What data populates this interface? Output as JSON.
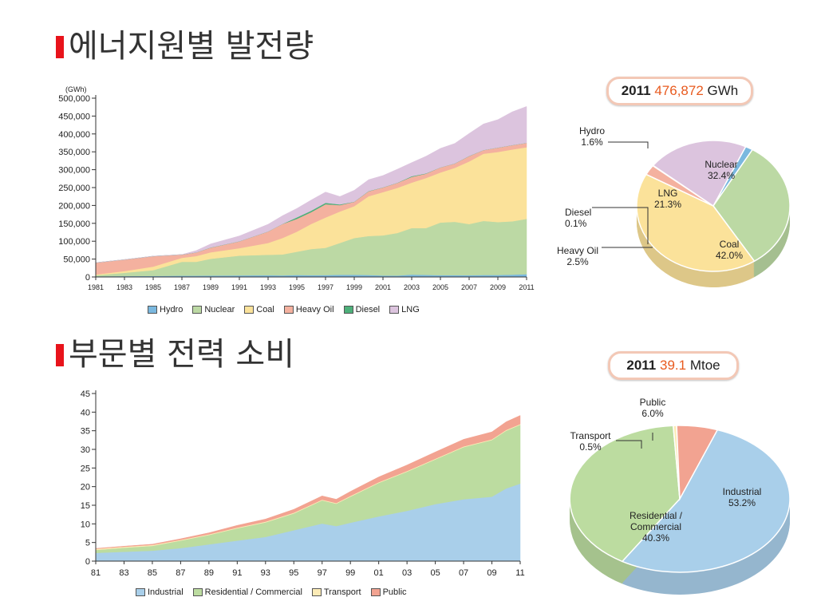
{
  "section1": {
    "title": "에너지원별 발전량"
  },
  "section2": {
    "title": "부문별 전력 소비"
  },
  "colors": {
    "accent": "#e8131b",
    "hydro": "#7ab8df",
    "nuclear": "#bcd9a4",
    "coal": "#fbe29a",
    "heavy_oil": "#f4b19f",
    "diesel": "#4db07a",
    "lng": "#dcc4de",
    "industrial": "#a9cfea",
    "residential": "#bcdca0",
    "transport": "#fcebb6",
    "public": "#f2a391"
  },
  "chart_data": [
    {
      "type": "area",
      "stacked": true,
      "ylabel": "(GWh)",
      "ylim": [
        0,
        500000
      ],
      "yticks": [
        0,
        50000,
        100000,
        150000,
        200000,
        250000,
        300000,
        350000,
        400000,
        450000,
        500000
      ],
      "ytick_labels": [
        "0",
        "50,000",
        "100,000",
        "150,000",
        "200,000",
        "250,000",
        "300,000",
        "350,000",
        "400,000",
        "450,000",
        "500,000"
      ],
      "x": [
        1981,
        1983,
        1985,
        1987,
        1988,
        1989,
        1991,
        1993,
        1994,
        1995,
        1996,
        1997,
        1998,
        1999,
        2000,
        2001,
        2002,
        2003,
        2004,
        2005,
        2006,
        2007,
        2008,
        2009,
        2010,
        2011
      ],
      "xtick_labels": [
        "1981",
        "1983",
        "1985",
        "1987",
        "1989",
        "1991",
        "1993",
        "1995",
        "1997",
        "1999",
        "2001",
        "2003",
        "2005",
        "2007",
        "2009",
        "2011"
      ],
      "series": [
        {
          "name": "Hydro",
          "values": [
            2000,
            2500,
            3000,
            3500,
            3500,
            4000,
            4500,
            5000,
            4500,
            5500,
            5200,
            5400,
            6000,
            6000,
            5600,
            4200,
            4000,
            6800,
            5800,
            5200,
            5200,
            5000,
            5600,
            5600,
            6500,
            7800
          ]
        },
        {
          "name": "Nuclear",
          "values": [
            3000,
            9000,
            16000,
            39000,
            39000,
            47000,
            55000,
            57000,
            58500,
            65000,
            73000,
            76000,
            89000,
            103000,
            109000,
            112000,
            119000,
            130000,
            131000,
            147000,
            149000,
            143000,
            151000,
            148000,
            149000,
            154700
          ]
        },
        {
          "name": "Coal",
          "values": [
            2000,
            5000,
            10000,
            11000,
            16000,
            18000,
            21000,
            33000,
            46000,
            56000,
            70000,
            85000,
            88000,
            89000,
            111000,
            121000,
            126000,
            127000,
            140000,
            140000,
            151000,
            175000,
            188000,
            196000,
            201000,
            200300
          ]
        },
        {
          "name": "Heavy Oil",
          "values": [
            33000,
            32000,
            29000,
            9000,
            10000,
            13000,
            19000,
            32000,
            39000,
            36000,
            33000,
            37000,
            18000,
            12000,
            14000,
            13000,
            14000,
            16000,
            12000,
            14000,
            12000,
            15000,
            10000,
            12000,
            12000,
            11900
          ]
        },
        {
          "name": "Diesel",
          "values": [
            200,
            200,
            200,
            300,
            300,
            300,
            300,
            300,
            300,
            4000,
            4000,
            4000,
            2000,
            500,
            500,
            500,
            300,
            2000,
            1000,
            300,
            300,
            300,
            300,
            300,
            300,
            300
          ]
        },
        {
          "name": "LNG",
          "values": [
            0,
            0,
            0,
            0,
            5000,
            10000,
            15000,
            20000,
            23000,
            25000,
            30000,
            30000,
            22000,
            32000,
            32000,
            33000,
            38000,
            38000,
            48000,
            53000,
            56000,
            63000,
            73000,
            78000,
            93000,
            101700
          ]
        }
      ]
    },
    {
      "type": "pie",
      "title": {
        "year": "2011",
        "value": "476,872",
        "unit": "GWh"
      },
      "slices": [
        {
          "name": "Hydro",
          "label": "Hydro",
          "value": 1.6,
          "text": "1.6%"
        },
        {
          "name": "Nuclear",
          "label": "Nuclear",
          "value": 32.4,
          "text": "32.4%"
        },
        {
          "name": "Coal",
          "label": "Coal",
          "value": 42.0,
          "text": "42.0%"
        },
        {
          "name": "Heavy Oil",
          "label": "Heavy Oil",
          "value": 2.5,
          "text": "2.5%"
        },
        {
          "name": "Diesel",
          "label": "Diesel",
          "value": 0.1,
          "text": "0.1%"
        },
        {
          "name": "LNG",
          "label": "LNG",
          "value": 21.3,
          "text": "21.3%"
        }
      ]
    },
    {
      "type": "area",
      "stacked": true,
      "ylim": [
        0,
        45
      ],
      "yticks": [
        0,
        5,
        10,
        15,
        20,
        25,
        30,
        35,
        40,
        45
      ],
      "ytick_labels": [
        "0",
        "5",
        "10",
        "15",
        "20",
        "25",
        "30",
        "35",
        "40",
        "45"
      ],
      "x": [
        1981,
        1983,
        1985,
        1987,
        1989,
        1991,
        1993,
        1995,
        1997,
        1998,
        1999,
        2001,
        2003,
        2005,
        2007,
        2009,
        2010,
        2011
      ],
      "xtick_labels": [
        "81",
        "83",
        "85",
        "87",
        "89",
        "91",
        "93",
        "95",
        "97",
        "99",
        "01",
        "03",
        "05",
        "07",
        "09",
        "11"
      ],
      "series": [
        {
          "name": "Industrial",
          "values": [
            2.2,
            2.5,
            2.8,
            3.5,
            4.5,
            5.5,
            6.5,
            8.3,
            10.1,
            9.4,
            10.3,
            12.0,
            13.5,
            15.3,
            16.6,
            17.3,
            19.5,
            20.8
          ]
        },
        {
          "name": "Residential / Commercial",
          "values": [
            0.8,
            1.1,
            1.3,
            2.0,
            2.5,
            3.3,
            3.9,
            4.5,
            6.2,
            6.0,
            7.0,
            9.0,
            10.5,
            12.0,
            14.0,
            15.2,
            15.5,
            15.8
          ]
        },
        {
          "name": "Transport",
          "values": [
            0.3,
            0.25,
            0.25,
            0.2,
            0.2,
            0.2,
            0.2,
            0.2,
            0.2,
            0.2,
            0.2,
            0.2,
            0.2,
            0.2,
            0.2,
            0.2,
            0.2,
            0.2
          ]
        },
        {
          "name": "Public",
          "values": [
            0.1,
            0.15,
            0.2,
            0.3,
            0.4,
            0.6,
            0.7,
            0.9,
            1.0,
            1.0,
            1.2,
            1.4,
            1.6,
            1.8,
            1.9,
            2.0,
            2.2,
            2.3
          ]
        }
      ]
    },
    {
      "type": "pie",
      "title": {
        "year": "2011",
        "value": "39.1",
        "unit": "Mtoe"
      },
      "slices": [
        {
          "name": "Industrial",
          "label": "Industrial",
          "value": 53.2,
          "text": "53.2%"
        },
        {
          "name": "Residential / Commercial",
          "label": "Residential / Commercial",
          "value": 40.3,
          "text": "40.3%"
        },
        {
          "name": "Transport",
          "label": "Transport",
          "value": 0.5,
          "text": "0.5%"
        },
        {
          "name": "Public",
          "label": "Public",
          "value": 6.0,
          "text": "6.0%"
        }
      ]
    }
  ]
}
